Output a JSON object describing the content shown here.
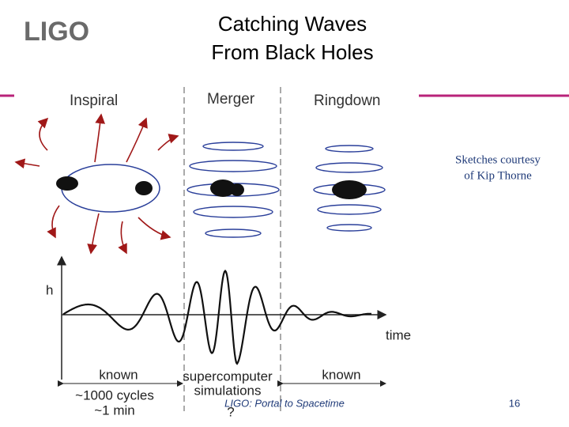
{
  "header": {
    "logo": "LIGO",
    "title_lines": [
      "Catching Waves",
      "From Black Holes"
    ]
  },
  "diagram": {
    "phases": [
      "Inspiral",
      "Merger",
      "Ringdown"
    ],
    "credit_lines": [
      "Sketches courtesy",
      "of Kip Thorne"
    ],
    "axis_y": "h",
    "axis_x": "time",
    "regions": [
      {
        "label": "known",
        "notes": [
          "~1000 cycles",
          "~1 min"
        ]
      },
      {
        "label_lines": [
          "supercomputer",
          "simulations"
        ],
        "notes": [
          "?"
        ]
      },
      {
        "label": "known"
      }
    ]
  },
  "footer": {
    "text": "LIGO: Portal to Spacetime",
    "page": "16"
  }
}
